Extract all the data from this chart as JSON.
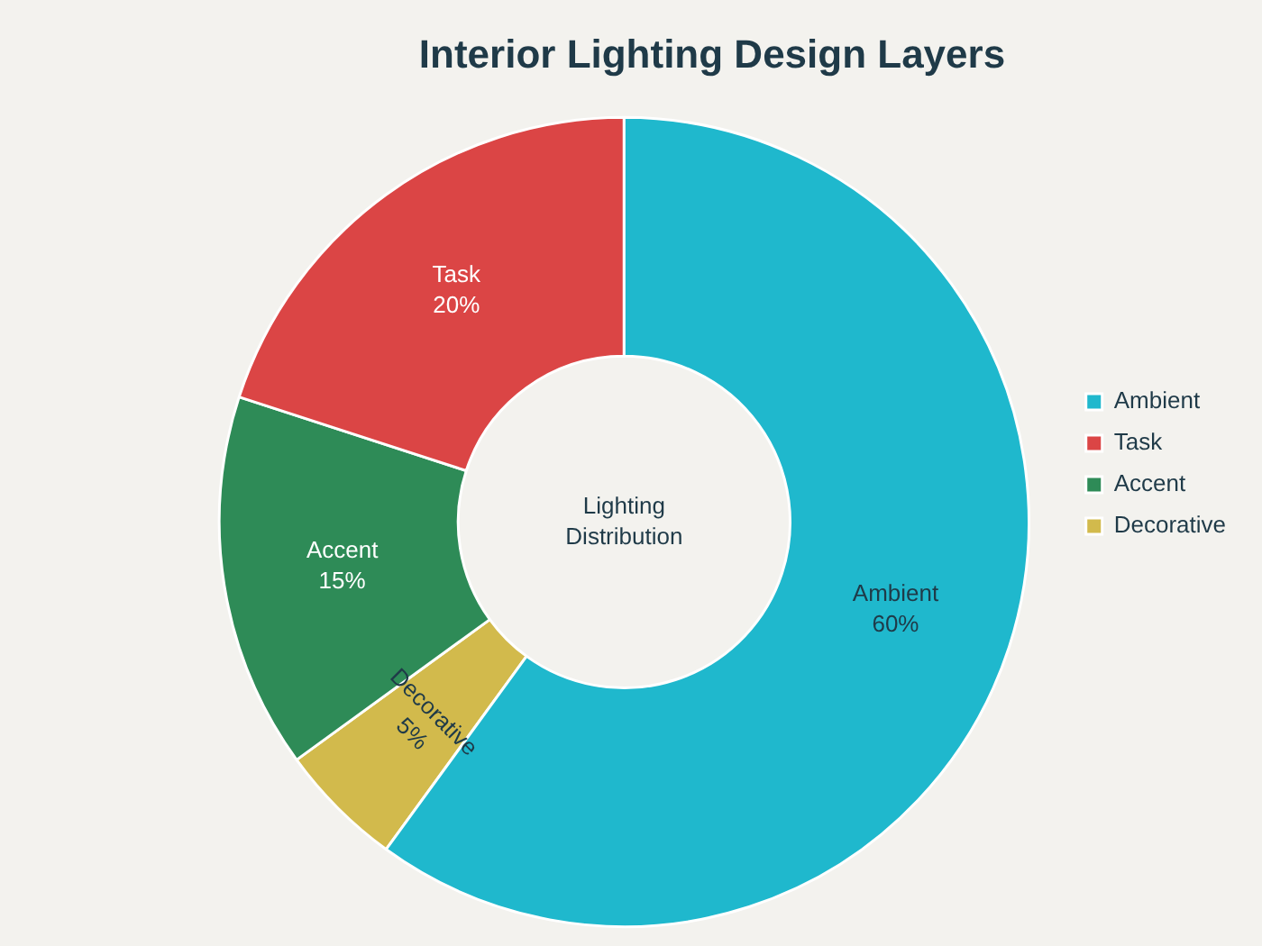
{
  "chart_data": {
    "type": "donut",
    "title": "Interior Lighting Design Layers",
    "categories": [
      "Ambient",
      "Task",
      "Accent",
      "Decorative"
    ],
    "values": [
      60,
      20,
      15,
      5
    ],
    "value_labels": [
      "60%",
      "20%",
      "15%",
      "5%"
    ],
    "colors": [
      "#1fb8cd",
      "#db4545",
      "#2e8b57",
      "#d2ba4c"
    ],
    "annotations": [
      "Lighting Distribution"
    ],
    "legend": "right"
  }
}
